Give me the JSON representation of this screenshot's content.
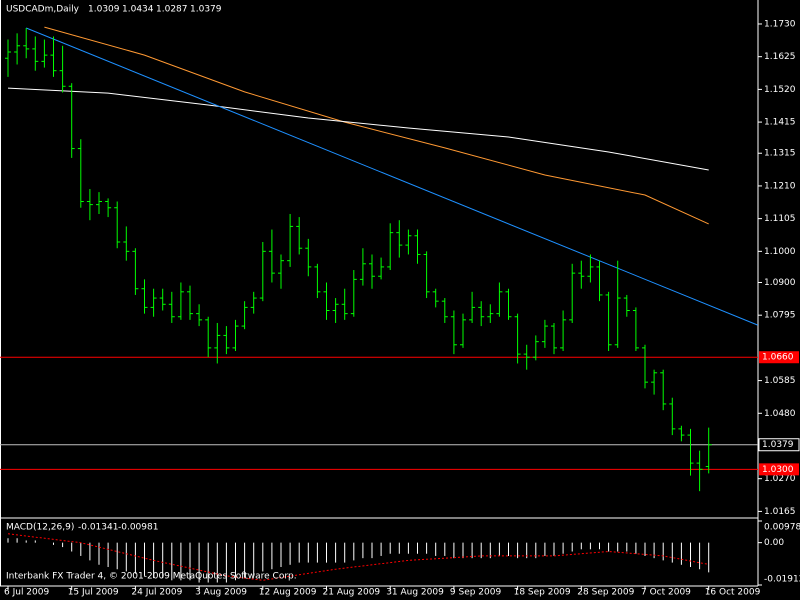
{
  "chart_data": {
    "type": "ohlc",
    "title": "USDCADm,Daily",
    "color": "#00ff00",
    "categories": [
      "6 Jul 2009",
      null,
      null,
      null,
      null,
      null,
      null,
      "15 Jul 2009",
      null,
      null,
      null,
      null,
      null,
      null,
      "24 Jul 2009",
      null,
      null,
      null,
      null,
      null,
      null,
      "3 Aug 2009",
      null,
      null,
      null,
      null,
      null,
      null,
      "12 Aug 2009",
      null,
      null,
      null,
      null,
      null,
      null,
      "21 Aug 2009",
      null,
      null,
      null,
      null,
      null,
      null,
      "31 Aug 2009",
      null,
      null,
      null,
      null,
      null,
      null,
      "9 Sep 2009",
      null,
      null,
      null,
      null,
      null,
      null,
      "18 Sep 2009",
      null,
      null,
      null,
      null,
      null,
      null,
      "28 Sep 2009",
      null,
      null,
      null,
      null,
      null,
      null,
      "7 Oct 2009",
      null,
      null,
      null,
      null,
      null,
      null,
      "16 Oct 2009"
    ],
    "open": [
      1.162,
      1.164,
      1.166,
      1.165,
      1.161,
      1.163,
      1.158,
      1.153,
      1.133,
      1.116,
      1.115,
      1.116,
      1.114,
      1.103,
      1.1,
      1.088,
      1.082,
      1.085,
      1.083,
      1.079,
      1.087,
      1.08,
      1.078,
      1.069,
      1.073,
      1.069,
      1.076,
      1.082,
      1.085,
      1.1,
      1.093,
      1.097,
      1.108,
      1.101,
      1.095,
      1.087,
      1.081,
      1.083,
      1.08,
      1.091,
      1.096,
      1.092,
      1.095,
      1.106,
      1.102,
      1.105,
      1.099,
      1.087,
      1.084,
      1.079,
      1.07,
      1.078,
      1.082,
      1.079,
      1.08,
      1.087,
      1.079,
      1.067,
      1.066,
      1.071,
      1.076,
      1.069,
      1.078,
      1.093,
      1.092,
      1.095,
      1.086,
      1.07,
      1.085,
      1.081,
      1.069,
      1.058,
      1.061,
      1.051,
      1.043,
      1.041,
      1.032,
      1.0309
    ],
    "high": [
      1.168,
      1.17,
      1.1717,
      1.169,
      1.168,
      1.169,
      1.166,
      1.154,
      1.136,
      1.12,
      1.119,
      1.117,
      1.116,
      1.108,
      1.101,
      1.091,
      1.088,
      1.088,
      1.087,
      1.09,
      1.089,
      1.083,
      1.079,
      1.077,
      1.076,
      1.078,
      1.084,
      1.087,
      1.103,
      1.107,
      1.099,
      1.112,
      1.111,
      1.104,
      1.096,
      1.09,
      1.085,
      1.088,
      1.094,
      1.101,
      1.099,
      1.098,
      1.109,
      1.11,
      1.107,
      1.107,
      1.1,
      1.088,
      1.085,
      1.081,
      1.08,
      1.087,
      1.084,
      1.083,
      1.09,
      1.088,
      1.08,
      1.07,
      1.073,
      1.078,
      1.077,
      1.081,
      1.096,
      1.097,
      1.099,
      1.097,
      1.087,
      1.097,
      1.086,
      1.082,
      1.07,
      1.062,
      1.062,
      1.053,
      1.044,
      1.043,
      1.036,
      1.0434
    ],
    "low": [
      1.156,
      1.16,
      1.162,
      1.158,
      1.159,
      1.156,
      1.151,
      1.13,
      1.114,
      1.11,
      1.112,
      1.111,
      1.101,
      1.097,
      1.086,
      1.08,
      1.079,
      1.081,
      1.077,
      1.078,
      1.078,
      1.076,
      1.066,
      1.064,
      1.067,
      1.068,
      1.075,
      1.08,
      1.084,
      1.09,
      1.088,
      1.095,
      1.099,
      1.092,
      1.085,
      1.078,
      1.077,
      1.078,
      1.079,
      1.089,
      1.088,
      1.091,
      1.094,
      1.098,
      1.099,
      1.096,
      1.085,
      1.082,
      1.077,
      1.067,
      1.069,
      1.077,
      1.076,
      1.077,
      1.079,
      1.078,
      1.064,
      1.062,
      1.065,
      1.069,
      1.067,
      1.068,
      1.077,
      1.088,
      1.09,
      1.084,
      1.068,
      1.069,
      1.079,
      1.068,
      1.056,
      1.054,
      1.049,
      1.041,
      1.039,
      1.028,
      1.023,
      1.0287
    ],
    "close": [
      1.164,
      1.166,
      1.165,
      1.161,
      1.163,
      1.158,
      1.153,
      1.133,
      1.116,
      1.115,
      1.116,
      1.114,
      1.103,
      1.1,
      1.088,
      1.082,
      1.085,
      1.083,
      1.079,
      1.087,
      1.08,
      1.078,
      1.069,
      1.073,
      1.069,
      1.076,
      1.082,
      1.085,
      1.1,
      1.093,
      1.097,
      1.108,
      1.101,
      1.095,
      1.087,
      1.081,
      1.083,
      1.08,
      1.091,
      1.096,
      1.092,
      1.095,
      1.106,
      1.102,
      1.105,
      1.099,
      1.087,
      1.084,
      1.079,
      1.07,
      1.078,
      1.082,
      1.079,
      1.08,
      1.087,
      1.079,
      1.067,
      1.066,
      1.071,
      1.076,
      1.069,
      1.078,
      1.093,
      1.092,
      1.095,
      1.086,
      1.07,
      1.085,
      1.081,
      1.069,
      1.058,
      1.061,
      1.051,
      1.043,
      1.041,
      1.032,
      1.03,
      1.0379
    ],
    "ylim": [
      1.0147,
      1.1807
    ],
    "yticks": [
      {
        "value": 1.173,
        "label": "1.1730"
      },
      1.1625,
      {
        "value": 1.152,
        "label": "1.1520"
      },
      1.1415,
      1.1315,
      {
        "value": 1.121,
        "label": "1.1210"
      },
      1.1105,
      {
        "value": 1.1,
        "label": "1.1000"
      },
      {
        "value": 1.09,
        "label": "1.0900"
      },
      1.0795,
      1.0585,
      {
        "value": 1.048,
        "label": "1.0480"
      },
      {
        "value": 1.027,
        "label": "1.0270"
      },
      1.0165
    ],
    "levels": [
      {
        "value": 1.066,
        "label": "1.0660",
        "color": "#ff0000"
      },
      {
        "value": 1.03,
        "label": "1.0300",
        "color": "#ff0000"
      }
    ],
    "lines": [
      {
        "color": "#ff9933",
        "x": [
          4,
          15,
          26,
          37,
          48,
          59,
          70,
          77
        ],
        "values": [
          1.172,
          1.163,
          1.1512,
          1.1415,
          1.1332,
          1.1245,
          1.1181,
          1.1088
        ]
      },
      {
        "color": "#ffffff",
        "x": [
          0,
          11,
          22,
          33,
          44,
          55,
          66,
          77
        ],
        "values": [
          1.1524,
          1.1508,
          1.147,
          1.1428,
          1.1396,
          1.1367,
          1.1319,
          1.1261
        ]
      },
      {
        "color": "#1e90ff",
        "x": [
          2,
          82.4
        ],
        "values": [
          1.1717,
          1.0763
        ]
      }
    ],
    "macd": {
      "title": "MACD(12,26,9)",
      "color": "#ffffff",
      "signal_color": "#ff0000",
      "values": [
        0.002,
        0.002,
        0.001,
        0.001,
        0,
        -0.001,
        -0.002,
        -0.004,
        -0.006,
        -0.008,
        -0.01,
        -0.011,
        -0.012,
        -0.013,
        -0.014,
        -0.015,
        -0.016,
        -0.016,
        -0.017,
        -0.017,
        -0.017,
        -0.018,
        -0.018,
        -0.018,
        -0.018,
        -0.017,
        -0.016,
        -0.015,
        -0.013,
        -0.012,
        -0.011,
        -0.01,
        -0.009,
        -0.009,
        -0.009,
        -0.009,
        -0.009,
        -0.009,
        -0.008,
        -0.007,
        -0.007,
        -0.006,
        -0.005,
        -0.005,
        -0.005,
        -0.005,
        -0.005,
        -0.006,
        -0.006,
        -0.007,
        -0.007,
        -0.007,
        -0.007,
        -0.007,
        -0.006,
        -0.006,
        -0.007,
        -0.007,
        -0.007,
        -0.006,
        -0.006,
        -0.005,
        -0.004,
        -0.003,
        -0.003,
        -0.003,
        -0.004,
        -0.004,
        -0.004,
        -0.005,
        -0.006,
        -0.007,
        -0.008,
        -0.009,
        -0.01,
        -0.011,
        -0.012,
        -0.01341
      ],
      "signal_x": [
        0,
        8,
        16,
        24,
        28,
        36,
        44,
        52,
        60,
        66,
        72,
        77
      ],
      "signal": [
        0.004,
        0,
        -0.008,
        -0.015,
        -0.017,
        -0.012,
        -0.008,
        -0.006,
        -0.006,
        -0.004,
        -0.006,
        -0.00981
      ],
      "ylim": [
        -0.01912,
        0.00978
      ],
      "yticks": [
        0.00978,
        {
          "value": 0,
          "label": "0.00"
        },
        -0.01912
      ]
    },
    "footer": "Interbank FX Trader 4, © 2001-2009 MetaQuotes Software Corp."
  }
}
